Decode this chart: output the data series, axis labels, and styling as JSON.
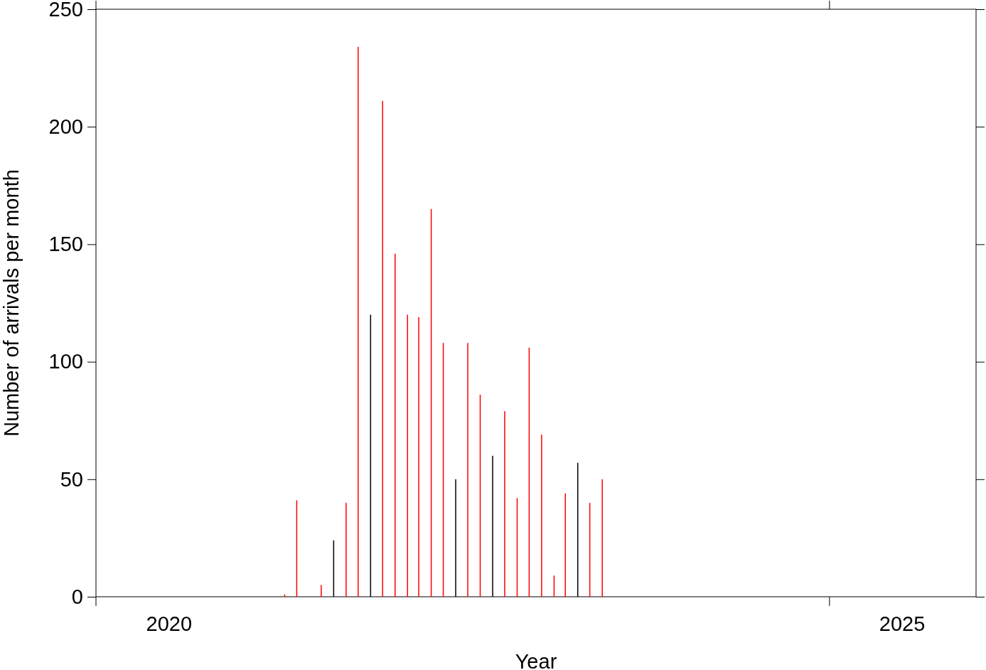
{
  "chart_data": {
    "type": "bar",
    "xlabel": "Year",
    "ylabel": "Number of arrivals per month",
    "x": [
      "2021-04-15",
      "2021-05-15",
      "2021-07-15",
      "2021-08-15",
      "2021-09-15",
      "2021-10-15",
      "2021-11-15",
      "2021-12-15",
      "2022-01-15",
      "2022-02-15",
      "2022-03-15",
      "2022-04-15",
      "2022-05-15",
      "2022-06-15",
      "2022-07-15",
      "2022-08-15",
      "2022-09-15",
      "2022-10-15",
      "2022-11-15",
      "2022-12-15",
      "2023-01-15",
      "2023-02-15",
      "2023-03-15",
      "2023-04-15",
      "2023-05-15",
      "2023-06-15"
    ],
    "values": [
      1,
      41,
      5,
      24,
      40,
      234,
      120,
      211,
      146,
      120,
      119,
      165,
      108,
      50,
      108,
      86,
      60,
      79,
      42,
      106,
      69,
      9,
      44,
      57,
      40,
      50
    ],
    "colors": [
      "#ff0000",
      "#ff0000",
      "#ff0000",
      "#000000",
      "#ff0000",
      "#ff0000",
      "#000000",
      "#ff0000",
      "#ff0000",
      "#ff0000",
      "#ff0000",
      "#ff0000",
      "#ff0000",
      "#000000",
      "#ff0000",
      "#ff0000",
      "#000000",
      "#ff0000",
      "#ff0000",
      "#ff0000",
      "#ff0000",
      "#ff0000",
      "#ff0000",
      "#000000",
      "#ff0000",
      "#ff0000"
    ],
    "xlim": [
      "2020-01-01",
      "2026-01-01"
    ],
    "xticks": [
      {
        "value": "2020-01-01",
        "label": null
      },
      {
        "value": "2020-07-01",
        "label": "2020"
      },
      {
        "value": "2025-01-01",
        "label": null
      },
      {
        "value": "2025-07-01",
        "label": "2025"
      }
    ],
    "ylim": [
      0,
      250
    ],
    "yticks": [
      0,
      50,
      100,
      150,
      200,
      250
    ],
    "grid": false
  }
}
